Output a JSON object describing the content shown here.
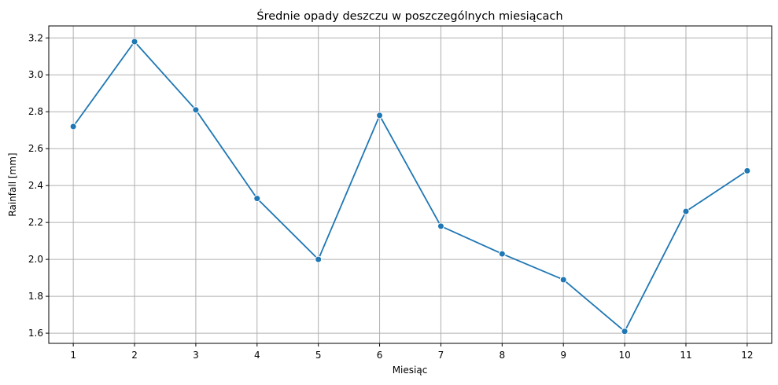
{
  "chart_data": {
    "type": "line",
    "title": "Średnie opady deszczu w poszczególnych miesiącach",
    "xlabel": "Miesiąc",
    "ylabel": "Rainfall [mm]",
    "x": [
      1,
      2,
      3,
      4,
      5,
      6,
      7,
      8,
      9,
      10,
      11,
      12
    ],
    "x_tick_labels": [
      "1",
      "2",
      "3",
      "4",
      "5",
      "6",
      "7",
      "8",
      "9",
      "10",
      "11",
      "12"
    ],
    "y_ticks": [
      1.6,
      1.8,
      2.0,
      2.2,
      2.4,
      2.6,
      2.8,
      3.0,
      3.2
    ],
    "y_tick_labels": [
      "1.6",
      "1.8",
      "2.0",
      "2.2",
      "2.4",
      "2.6",
      "2.8",
      "3.0",
      "3.2"
    ],
    "xlim": [
      0.6,
      12.4
    ],
    "ylim": [
      1.545,
      3.265
    ],
    "grid": true,
    "series": [
      {
        "color": "#1f77b4",
        "marker": "circle",
        "values": [
          2.72,
          3.18,
          2.81,
          2.33,
          2.0,
          2.78,
          2.18,
          2.03,
          1.89,
          1.61,
          2.26,
          2.48
        ]
      }
    ]
  }
}
